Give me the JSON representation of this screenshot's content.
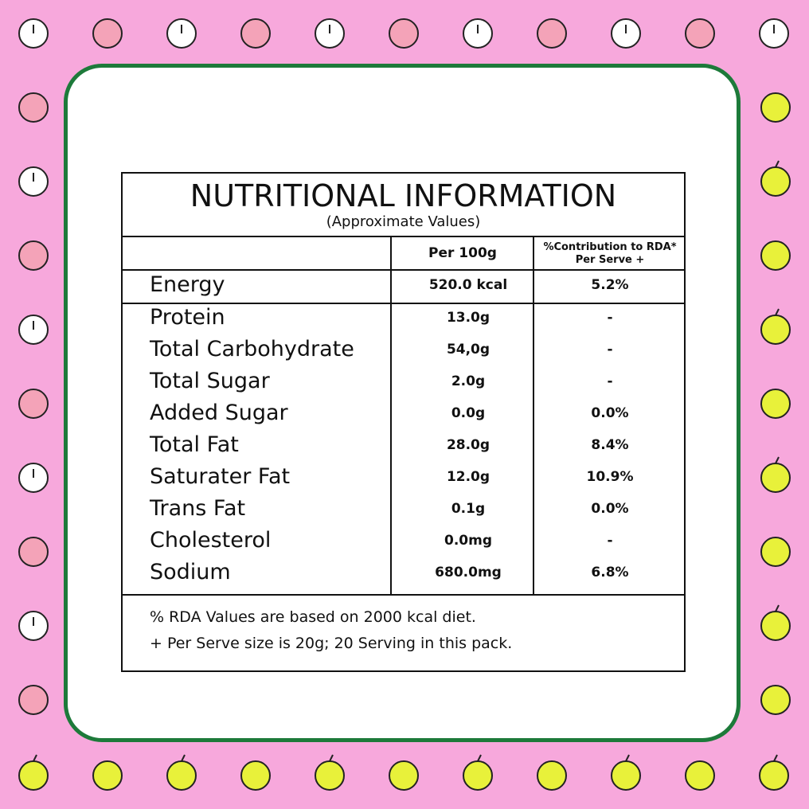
{
  "label": {
    "title": "NUTRITIONAL INFORMATION",
    "subtitle": "(Approximate Values)",
    "headers": [
      "Per 100g",
      "%Contribution to RDA* Per Serve +"
    ],
    "rows": [
      [
        "Energy",
        "520.0 kcal",
        "5.2%"
      ],
      [
        "Protein",
        "13.0g",
        "-"
      ],
      [
        "Total Carbohydrate",
        "54,0g",
        "-"
      ],
      [
        "Total Sugar",
        "2.0g",
        "-"
      ],
      [
        "Added Sugar",
        "0.0g",
        "0.0%"
      ],
      [
        "Total Fat",
        "28.0g",
        "8.4%"
      ],
      [
        "Saturater Fat",
        "12.0g",
        "10.9%"
      ],
      [
        "Trans Fat",
        "0.1g",
        "0.0%"
      ],
      [
        "Cholesterol",
        "0.0mg",
        "-"
      ],
      [
        "Sodium",
        "680.0mg",
        "6.8%"
      ]
    ],
    "footnotes": [
      "% RDA Values are based on 2000 kcal diet.",
      "+ Per Serve size is 20g; 20 Serving in this pack."
    ]
  }
}
